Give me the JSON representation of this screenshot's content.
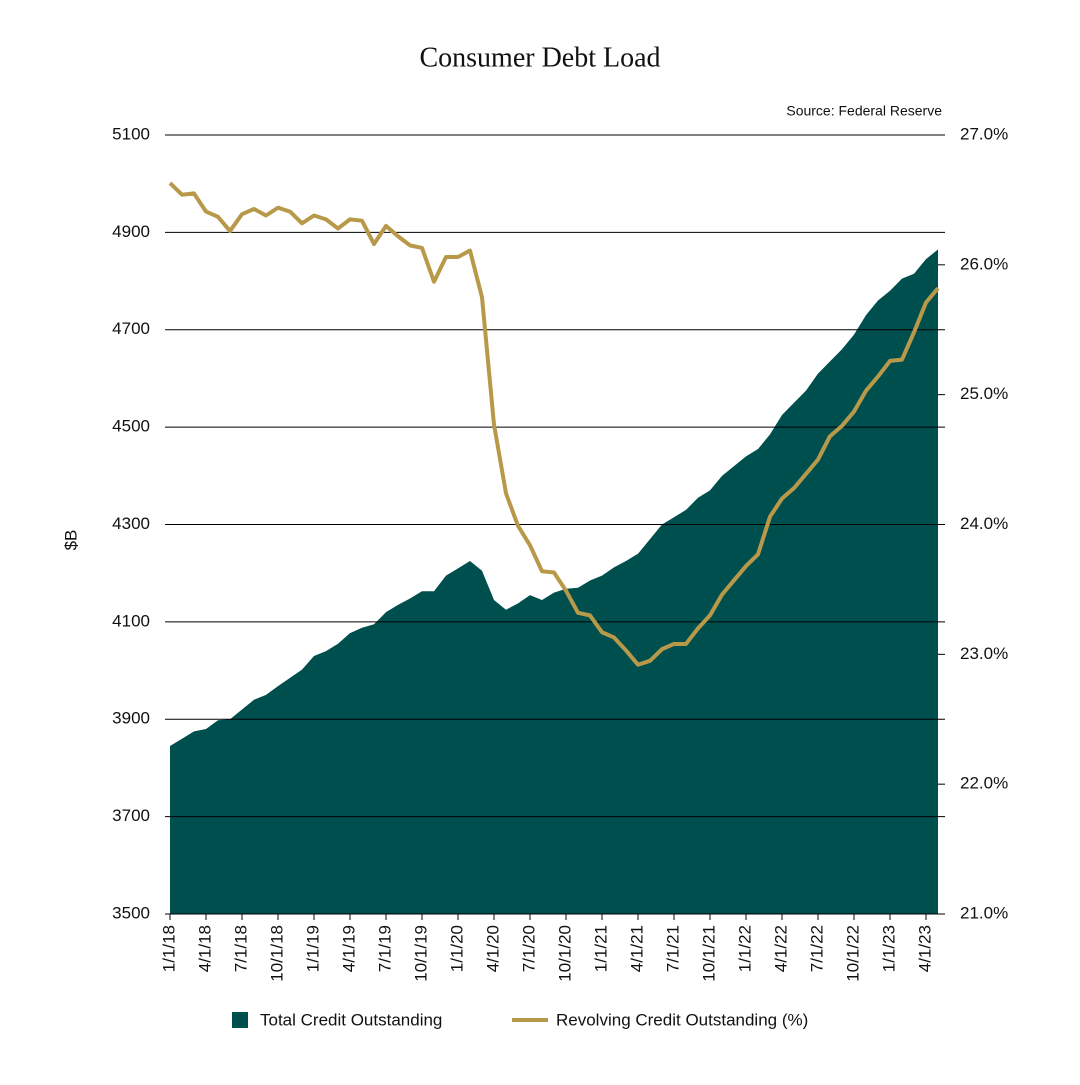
{
  "chart_data": {
    "type": "area-line",
    "title": "Consumer Debt Load",
    "source": "Source: Federal Reserve",
    "y_label": "$B",
    "categories": [
      "1/1/18",
      null,
      null,
      "4/1/18",
      null,
      null,
      "7/1/18",
      null,
      null,
      "10/1/18",
      null,
      null,
      "1/1/19",
      null,
      null,
      "4/1/19",
      null,
      null,
      "7/1/19",
      null,
      null,
      "10/1/19",
      null,
      null,
      "1/1/20",
      null,
      null,
      "4/1/20",
      null,
      null,
      "7/1/20",
      null,
      null,
      "10/1/20",
      null,
      null,
      "1/1/21",
      null,
      null,
      "4/1/21",
      null,
      null,
      "7/1/21",
      null,
      null,
      "10/1/21",
      null,
      null,
      "1/1/22",
      null,
      null,
      "4/1/22",
      null,
      null,
      "7/1/22",
      null,
      null,
      "10/1/22",
      null,
      null,
      "1/1/23",
      null,
      null,
      "4/1/23",
      null
    ],
    "series": [
      {
        "name": "Total Credit Outstanding",
        "color": "#004f4f",
        "kind": "area",
        "values": [
          3845,
          3860,
          3875,
          3880,
          3898,
          3900,
          3920,
          3940,
          3950,
          3968,
          3985,
          4002,
          4030,
          4040,
          4055,
          4077,
          4088,
          4095,
          4120,
          4135,
          4148,
          4163,
          4163,
          4195,
          4210,
          4225,
          4205,
          4145,
          4125,
          4138,
          4155,
          4145,
          4160,
          4168,
          4170,
          4185,
          4195,
          4212,
          4225,
          4240,
          4270,
          4300,
          4315,
          4330,
          4355,
          4370,
          4400,
          4420,
          4440,
          4455,
          4485,
          4525,
          4550,
          4575,
          4610,
          4635,
          4660,
          4690,
          4730,
          4760,
          4780,
          4805,
          4815,
          4845,
          4865
        ]
      },
      {
        "name": "Revolving Credit Outstanding (%)",
        "color": "#b8994a",
        "kind": "line",
        "axis": "y2",
        "values": [
          26.63,
          26.54,
          26.55,
          26.41,
          26.37,
          26.26,
          26.39,
          26.43,
          26.38,
          26.44,
          26.41,
          26.32,
          26.38,
          26.35,
          26.28,
          26.35,
          26.34,
          26.16,
          26.3,
          26.22,
          26.15,
          26.13,
          25.87,
          26.06,
          26.06,
          26.11,
          25.75,
          24.77,
          24.24,
          23.99,
          23.84,
          23.64,
          23.63,
          23.49,
          23.32,
          23.3,
          23.17,
          23.13,
          23.03,
          22.92,
          22.95,
          23.04,
          23.08,
          23.08,
          23.2,
          23.3,
          23.46,
          23.57,
          23.68,
          23.77,
          24.06,
          24.2,
          24.28,
          24.39,
          24.5,
          24.68,
          24.76,
          24.87,
          25.03,
          25.14,
          25.26,
          25.27,
          25.48,
          25.71,
          25.82
        ]
      }
    ],
    "ylim": [
      3500,
      5100
    ],
    "yticks": [
      3500,
      3700,
      3900,
      4100,
      4300,
      4500,
      4700,
      4900,
      5100
    ],
    "y2lim": [
      21,
      27
    ],
    "y2ticks": [
      {
        "value": 21,
        "label": "21.0%"
      },
      {
        "value": 22,
        "label": "22.0%"
      },
      {
        "value": 23,
        "label": "23.0%"
      },
      {
        "value": 24,
        "label": "24.0%"
      },
      {
        "value": 25,
        "label": "25.0%"
      },
      {
        "value": 26,
        "label": "26.0%"
      },
      {
        "value": 27,
        "label": "27.0%"
      }
    ],
    "grid": true
  }
}
